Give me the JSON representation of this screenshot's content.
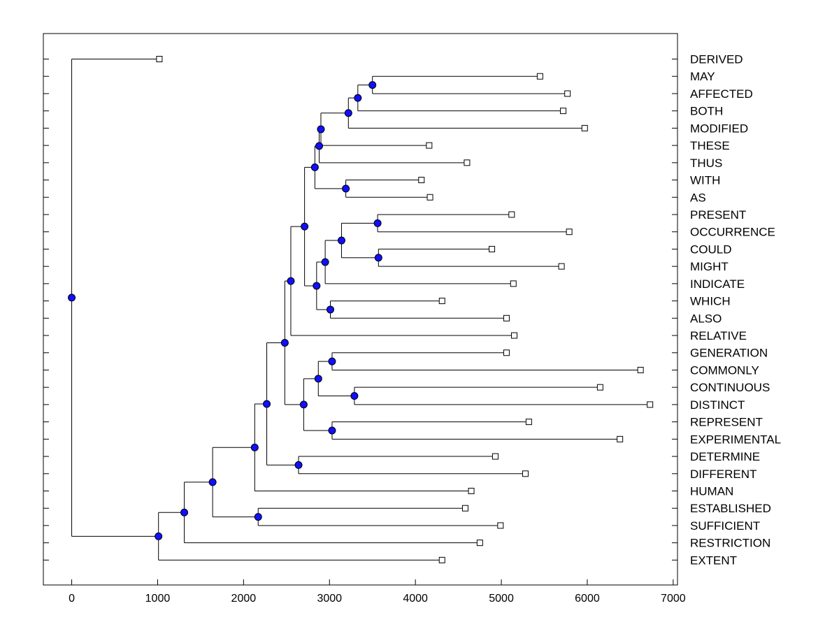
{
  "chart_data": {
    "type": "dendrogram",
    "orientation": "horizontal",
    "x_axis": {
      "range": [
        -330,
        7050
      ],
      "ticks": [
        0,
        1000,
        2000,
        3000,
        4000,
        5000,
        6000,
        7000
      ],
      "tick_labels": [
        "0",
        "1000",
        "2000",
        "3000",
        "4000",
        "5000",
        "6000",
        "7000"
      ]
    },
    "grid": false,
    "colors": {
      "node": "#1010ff",
      "line": "#000000",
      "leaf_marker": "#ffffff"
    },
    "leaves": [
      {
        "name": "DERIVED",
        "x": 1020
      },
      {
        "name": "MAY",
        "x": 5450
      },
      {
        "name": "AFFECTED",
        "x": 5770
      },
      {
        "name": "BOTH",
        "x": 5720
      },
      {
        "name": "MODIFIED",
        "x": 5970
      },
      {
        "name": "THESE",
        "x": 4160
      },
      {
        "name": "THUS",
        "x": 4600
      },
      {
        "name": "WITH",
        "x": 4070
      },
      {
        "name": "AS",
        "x": 4170
      },
      {
        "name": "PRESENT",
        "x": 5120
      },
      {
        "name": "OCCURRENCE",
        "x": 5790
      },
      {
        "name": "COULD",
        "x": 4890
      },
      {
        "name": "MIGHT",
        "x": 5700
      },
      {
        "name": "INDICATE",
        "x": 5140
      },
      {
        "name": "WHICH",
        "x": 4310
      },
      {
        "name": "ALSO",
        "x": 5060
      },
      {
        "name": "RELATIVE",
        "x": 5150
      },
      {
        "name": "GENERATION",
        "x": 5060
      },
      {
        "name": "COMMONLY",
        "x": 6620
      },
      {
        "name": "CONTINUOUS",
        "x": 6150
      },
      {
        "name": "DISTINCT",
        "x": 6730
      },
      {
        "name": "REPRESENT",
        "x": 5320
      },
      {
        "name": "EXPERIMENTAL",
        "x": 6380
      },
      {
        "name": "DETERMINE",
        "x": 4930
      },
      {
        "name": "DIFFERENT",
        "x": 5280
      },
      {
        "name": "HUMAN",
        "x": 4650
      },
      {
        "name": "ESTABLISHED",
        "x": 4580
      },
      {
        "name": "SUFFICIENT",
        "x": 4990
      },
      {
        "name": "RESTRICTION",
        "x": 4750
      },
      {
        "name": "EXTENT",
        "x": 4310
      }
    ],
    "merges": [
      {
        "id": "n1",
        "x": 3500,
        "children": [
          "MAY",
          "AFFECTED"
        ]
      },
      {
        "id": "n2",
        "x": 3330,
        "children": [
          "n1",
          "BOTH"
        ]
      },
      {
        "id": "n3",
        "x": 3220,
        "children": [
          "n2",
          "MODIFIED"
        ]
      },
      {
        "id": "n4",
        "x": 2900,
        "children": [
          "n3",
          "THESE"
        ]
      },
      {
        "id": "n5",
        "x": 2880,
        "children": [
          "n4",
          "THUS"
        ]
      },
      {
        "id": "n6",
        "x": 3190,
        "children": [
          "WITH",
          "AS"
        ]
      },
      {
        "id": "n7",
        "x": 2830,
        "children": [
          "n5",
          "n6"
        ]
      },
      {
        "id": "n8",
        "x": 3560,
        "children": [
          "PRESENT",
          "OCCURRENCE"
        ]
      },
      {
        "id": "n9",
        "x": 3570,
        "children": [
          "COULD",
          "MIGHT"
        ]
      },
      {
        "id": "n10",
        "x": 3140,
        "children": [
          "n8",
          "n9"
        ]
      },
      {
        "id": "n11",
        "x": 2950,
        "children": [
          "n10",
          "INDICATE"
        ]
      },
      {
        "id": "n12",
        "x": 3010,
        "children": [
          "WHICH",
          "ALSO"
        ]
      },
      {
        "id": "n13",
        "x": 2850,
        "children": [
          "n11",
          "n12"
        ]
      },
      {
        "id": "n14",
        "x": 2710,
        "children": [
          "n7",
          "n13"
        ]
      },
      {
        "id": "n15",
        "x": 2550,
        "children": [
          "n14",
          "RELATIVE"
        ]
      },
      {
        "id": "n16",
        "x": 3030,
        "children": [
          "GENERATION",
          "COMMONLY"
        ]
      },
      {
        "id": "n17",
        "x": 3290,
        "children": [
          "CONTINUOUS",
          "DISTINCT"
        ]
      },
      {
        "id": "n18",
        "x": 2870,
        "children": [
          "n16",
          "n17"
        ]
      },
      {
        "id": "n19",
        "x": 3030,
        "children": [
          "REPRESENT",
          "EXPERIMENTAL"
        ]
      },
      {
        "id": "n20",
        "x": 2700,
        "children": [
          "n18",
          "n19"
        ]
      },
      {
        "id": "n21",
        "x": 2480,
        "children": [
          "n15",
          "n20"
        ]
      },
      {
        "id": "n22",
        "x": 2640,
        "children": [
          "DETERMINE",
          "DIFFERENT"
        ]
      },
      {
        "id": "n23",
        "x": 2270,
        "children": [
          "n21",
          "n22"
        ]
      },
      {
        "id": "n24",
        "x": 2130,
        "children": [
          "n23",
          "HUMAN"
        ]
      },
      {
        "id": "n25",
        "x": 2170,
        "children": [
          "ESTABLISHED",
          "SUFFICIENT"
        ]
      },
      {
        "id": "n26",
        "x": 1640,
        "children": [
          "n24",
          "n25"
        ]
      },
      {
        "id": "n27",
        "x": 1310,
        "children": [
          "n26",
          "RESTRICTION"
        ]
      },
      {
        "id": "n28",
        "x": 1010,
        "children": [
          "n27",
          "EXTENT"
        ]
      },
      {
        "id": "n29",
        "x": 0,
        "children": [
          "DERIVED",
          "n28"
        ]
      }
    ]
  }
}
